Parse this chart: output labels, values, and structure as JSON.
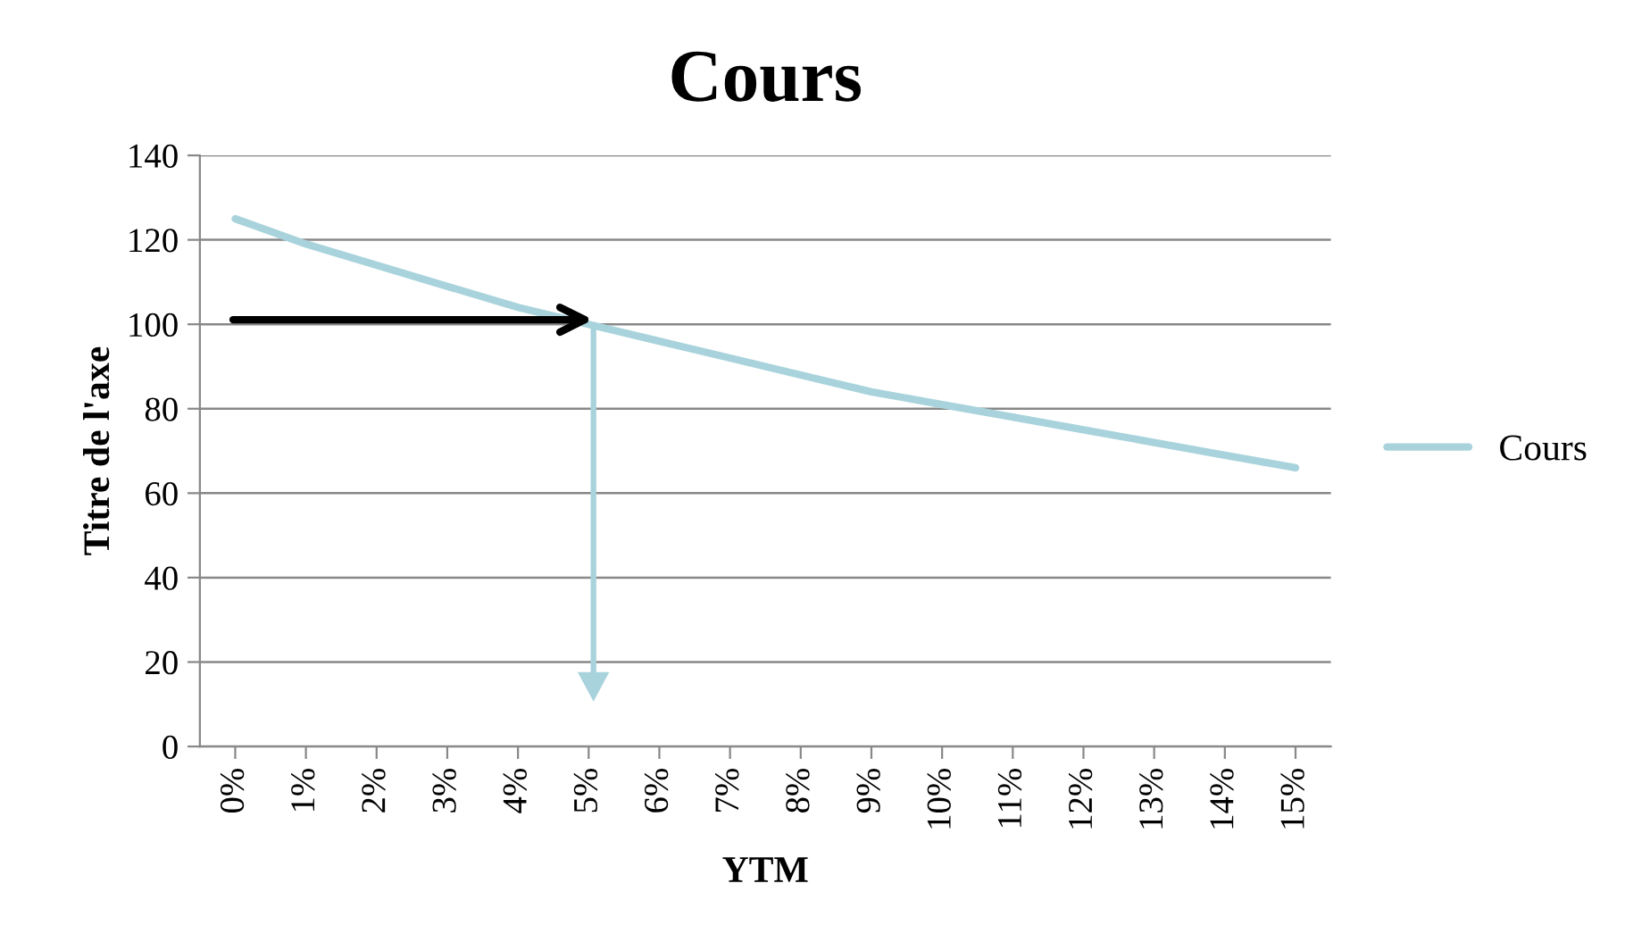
{
  "chart_data": {
    "type": "line",
    "title": "Cours",
    "xlabel": "YTM",
    "ylabel": "Titre de l'axe",
    "categories": [
      "0%",
      "1%",
      "2%",
      "3%",
      "4%",
      "5%",
      "6%",
      "7%",
      "8%",
      "9%",
      "10%",
      "11%",
      "12%",
      "13%",
      "14%",
      "15%"
    ],
    "series": [
      {
        "name": "Cours",
        "color": "#a9d3dc",
        "values": [
          125,
          119,
          114,
          109,
          104,
          100,
          96,
          92,
          88,
          84,
          81,
          78,
          75,
          72,
          69,
          66
        ]
      }
    ],
    "ylim": [
      0,
      140
    ],
    "yticks": [
      0,
      20,
      40,
      60,
      80,
      100,
      120,
      140
    ],
    "grid": "y",
    "legend": "right",
    "marker": "none",
    "line_style": "solid"
  }
}
